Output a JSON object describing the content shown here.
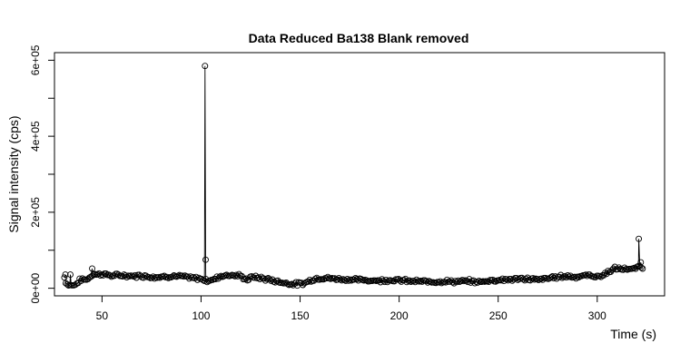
{
  "chart_data": {
    "type": "scatter",
    "title": "Data Reduced Ba138 Blank removed",
    "xlabel": "Time (s)",
    "ylabel": "Signal intensity (cps)",
    "xlim": [
      26,
      334
    ],
    "ylim": [
      -20000,
      620000
    ],
    "x_ticks": [
      50,
      100,
      150,
      200,
      250,
      300
    ],
    "x_tick_labels": [
      "50",
      "100",
      "150",
      "200",
      "250",
      "300"
    ],
    "y_ticks": [
      0,
      200000,
      400000,
      600000
    ],
    "y_tick_labels": [
      "0e+00",
      "2e+05",
      "4e+05",
      "6e+05"
    ],
    "y_minor_ticks": [
      100000,
      300000,
      500000
    ],
    "grid": false,
    "legend": "none",
    "profile": [
      [
        31,
        28000
      ],
      [
        32,
        12000
      ],
      [
        33,
        9000
      ],
      [
        35,
        8000
      ],
      [
        37,
        10000
      ],
      [
        38,
        18000
      ],
      [
        40,
        24000
      ],
      [
        42,
        22000
      ],
      [
        44,
        30000
      ],
      [
        46,
        38000
      ],
      [
        48,
        36000
      ],
      [
        50,
        38000
      ],
      [
        55,
        33000
      ],
      [
        60,
        34000
      ],
      [
        65,
        32000
      ],
      [
        70,
        33000
      ],
      [
        75,
        30000
      ],
      [
        80,
        30000
      ],
      [
        85,
        32000
      ],
      [
        90,
        31000
      ],
      [
        95,
        27000
      ],
      [
        100,
        25000
      ],
      [
        102,
        22000
      ],
      [
        103,
        20000
      ],
      [
        106,
        22000
      ],
      [
        110,
        33000
      ],
      [
        115,
        35000
      ],
      [
        120,
        32000
      ],
      [
        123,
        22000
      ],
      [
        126,
        30000
      ],
      [
        130,
        27000
      ],
      [
        135,
        22000
      ],
      [
        140,
        16000
      ],
      [
        145,
        12000
      ],
      [
        150,
        11000
      ],
      [
        153,
        15000
      ],
      [
        156,
        23000
      ],
      [
        160,
        27000
      ],
      [
        165,
        26000
      ],
      [
        170,
        24000
      ],
      [
        175,
        23000
      ],
      [
        180,
        22000
      ],
      [
        185,
        21000
      ],
      [
        190,
        20000
      ],
      [
        195,
        22000
      ],
      [
        200,
        21000
      ],
      [
        205,
        19000
      ],
      [
        210,
        18000
      ],
      [
        215,
        17000
      ],
      [
        220,
        18000
      ],
      [
        225,
        18000
      ],
      [
        230,
        17000
      ],
      [
        235,
        19000
      ],
      [
        240,
        16000
      ],
      [
        245,
        20000
      ],
      [
        250,
        22000
      ],
      [
        255,
        23000
      ],
      [
        260,
        24000
      ],
      [
        265,
        25000
      ],
      [
        270,
        22000
      ],
      [
        275,
        26000
      ],
      [
        280,
        30000
      ],
      [
        285,
        32000
      ],
      [
        290,
        30000
      ],
      [
        295,
        34000
      ],
      [
        300,
        31000
      ],
      [
        303,
        34000
      ],
      [
        306,
        45000
      ],
      [
        309,
        52000
      ],
      [
        312,
        50000
      ],
      [
        315,
        52000
      ],
      [
        318,
        48000
      ],
      [
        320,
        55000
      ],
      [
        322,
        60000
      ],
      [
        323,
        48000
      ]
    ],
    "spikes": [
      {
        "x": 102,
        "y": 585000
      },
      {
        "x": 102.3,
        "y": 75000
      },
      {
        "x": 321,
        "y": 130000
      },
      {
        "x": 322,
        "y": 68000
      },
      {
        "x": 45,
        "y": 52000
      },
      {
        "x": 34,
        "y": 36000
      },
      {
        "x": 31.5,
        "y": 36000
      }
    ]
  }
}
